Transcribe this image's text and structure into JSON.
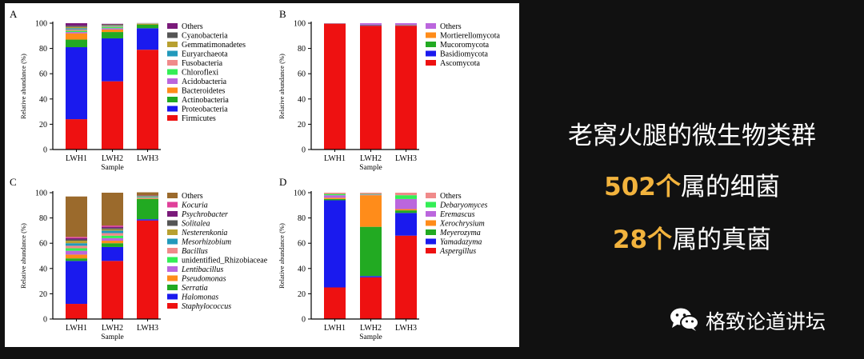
{
  "caption": {
    "line1": "老窝火腿的微生物类群",
    "line2_number": "502个",
    "line2_text": "属的细菌",
    "line3_number": "28个",
    "line3_text": "属的真菌"
  },
  "brand": {
    "name": "格致论道讲坛",
    "icon": "wechat-icon"
  },
  "chart_data": [
    {
      "type": "bar",
      "stacked": true,
      "panel": "A",
      "categories": [
        "LWH1",
        "LWH2",
        "LWH3"
      ],
      "xlabel": "Sample",
      "ylabel": "Relative abundance (%)",
      "ylim": [
        0,
        100
      ],
      "yticks": [
        0,
        20,
        40,
        60,
        80,
        100
      ],
      "legend_italic": false,
      "series": [
        {
          "name": "Firmicutes",
          "color": "#ee1111",
          "values": [
            24,
            54,
            79
          ]
        },
        {
          "name": "Proteobacteria",
          "color": "#1a1aee",
          "values": [
            57,
            34,
            17
          ]
        },
        {
          "name": "Actinobacteria",
          "color": "#22aa22",
          "values": [
            6,
            5,
            3
          ]
        },
        {
          "name": "Bacteroidetes",
          "color": "#ff8c1a",
          "values": [
            5,
            2,
            0.5
          ]
        },
        {
          "name": "Acidobacteria",
          "color": "#bb66dd",
          "values": [
            1,
            1,
            0.1
          ]
        },
        {
          "name": "Chloroflexi",
          "color": "#33ee55",
          "values": [
            1,
            1,
            0.1
          ]
        },
        {
          "name": "Fusobacteria",
          "color": "#f08a8a",
          "values": [
            1,
            0.5,
            0.1
          ]
        },
        {
          "name": "Euryarchaeota",
          "color": "#2299bb",
          "values": [
            1,
            0.5,
            0.1
          ]
        },
        {
          "name": "Gemmatimonadetes",
          "color": "#b8a030",
          "values": [
            1,
            0.5,
            0.1
          ]
        },
        {
          "name": "Cyanobacteria",
          "color": "#555555",
          "values": [
            1,
            0.5,
            0.05
          ]
        },
        {
          "name": "Others",
          "color": "#7a1a7a",
          "values": [
            2,
            0.5,
            0.05
          ]
        }
      ]
    },
    {
      "type": "bar",
      "stacked": true,
      "panel": "B",
      "categories": [
        "LWH1",
        "LWH2",
        "LWH3"
      ],
      "xlabel": "Sample",
      "ylabel": "Relative abundance (%)",
      "ylim": [
        0,
        100
      ],
      "yticks": [
        0,
        20,
        40,
        60,
        80,
        100
      ],
      "legend_italic": false,
      "series": [
        {
          "name": "Ascomycota",
          "color": "#ee1111",
          "values": [
            99.6,
            98,
            98
          ]
        },
        {
          "name": "Basidiomycota",
          "color": "#1a1aee",
          "values": [
            0.1,
            0.4,
            0.3
          ]
        },
        {
          "name": "Mucoromycota",
          "color": "#22aa22",
          "values": [
            0.1,
            0.2,
            0.2
          ]
        },
        {
          "name": "Mortierellomycota",
          "color": "#ff8c1a",
          "values": [
            0.1,
            0.2,
            0.2
          ]
        },
        {
          "name": "Others",
          "color": "#bb66dd",
          "values": [
            0.1,
            1.2,
            1.3
          ]
        }
      ]
    },
    {
      "type": "bar",
      "stacked": true,
      "panel": "C",
      "categories": [
        "LWH1",
        "LWH2",
        "LWH3"
      ],
      "xlabel": "Sample",
      "ylabel": "Relative abundance (%)",
      "ylim": [
        0,
        100
      ],
      "yticks": [
        0,
        20,
        40,
        60,
        80,
        100
      ],
      "legend_italic": true,
      "series": [
        {
          "name": "Staphylococcus",
          "color": "#ee1111",
          "values": [
            12,
            46,
            78
          ]
        },
        {
          "name": "Halomonas",
          "color": "#1a1aee",
          "values": [
            34,
            11,
            1
          ]
        },
        {
          "name": "Serratia",
          "color": "#22aa22",
          "values": [
            2,
            3,
            16
          ]
        },
        {
          "name": "Pseudomonas",
          "color": "#ff8c1a",
          "values": [
            3,
            2,
            0.5
          ]
        },
        {
          "name": "Lentibacillus",
          "color": "#bb66dd",
          "values": [
            3,
            2,
            0.5
          ]
        },
        {
          "name": "unidentified_Rhizobiaceae",
          "color": "#33ee55",
          "values": [
            2,
            2,
            0.5
          ]
        },
        {
          "name": "Bacillus",
          "color": "#f08a8a",
          "values": [
            2,
            2,
            0.3
          ]
        },
        {
          "name": "Mesorhizobium",
          "color": "#2299bb",
          "values": [
            2,
            2,
            0.3
          ]
        },
        {
          "name": "Nesterenkonia",
          "color": "#b8a030",
          "values": [
            2,
            1,
            0.2
          ]
        },
        {
          "name": "Solitalea",
          "color": "#555555",
          "values": [
            1,
            1,
            0.2
          ]
        },
        {
          "name": "Psychrobacter",
          "color": "#7a1a7a",
          "values": [
            1,
            1,
            0.2
          ]
        },
        {
          "name": "Kocuria",
          "color": "#e0409a",
          "values": [
            1,
            1,
            0.1
          ]
        },
        {
          "name": "Others",
          "color": "#9b6a2c",
          "values": [
            32,
            26,
            2.5
          ]
        }
      ]
    },
    {
      "type": "bar",
      "stacked": true,
      "panel": "D",
      "categories": [
        "LWH1",
        "LWH2",
        "LWH3"
      ],
      "xlabel": "Sample",
      "ylabel": "Relative abundance (%)",
      "ylim": [
        0,
        100
      ],
      "yticks": [
        0,
        20,
        40,
        60,
        80,
        100
      ],
      "legend_italic": true,
      "series": [
        {
          "name": "Aspergillus",
          "color": "#ee1111",
          "values": [
            25,
            33,
            66
          ]
        },
        {
          "name": "Yamadazyma",
          "color": "#1a1aee",
          "values": [
            69,
            1,
            18
          ]
        },
        {
          "name": "Meyerozyma",
          "color": "#22aa22",
          "values": [
            1,
            39,
            2
          ]
        },
        {
          "name": "Xerochrysium",
          "color": "#ff8c1a",
          "values": [
            1,
            25,
            1
          ]
        },
        {
          "name": "Eremascus",
          "color": "#bb66dd",
          "values": [
            2,
            0.5,
            8
          ]
        },
        {
          "name": "Debaryomyces",
          "color": "#33ee55",
          "values": [
            1,
            0.5,
            3
          ]
        },
        {
          "name": "Others",
          "color": "#f08a8a",
          "values": [
            1,
            1,
            2
          ]
        }
      ]
    }
  ]
}
